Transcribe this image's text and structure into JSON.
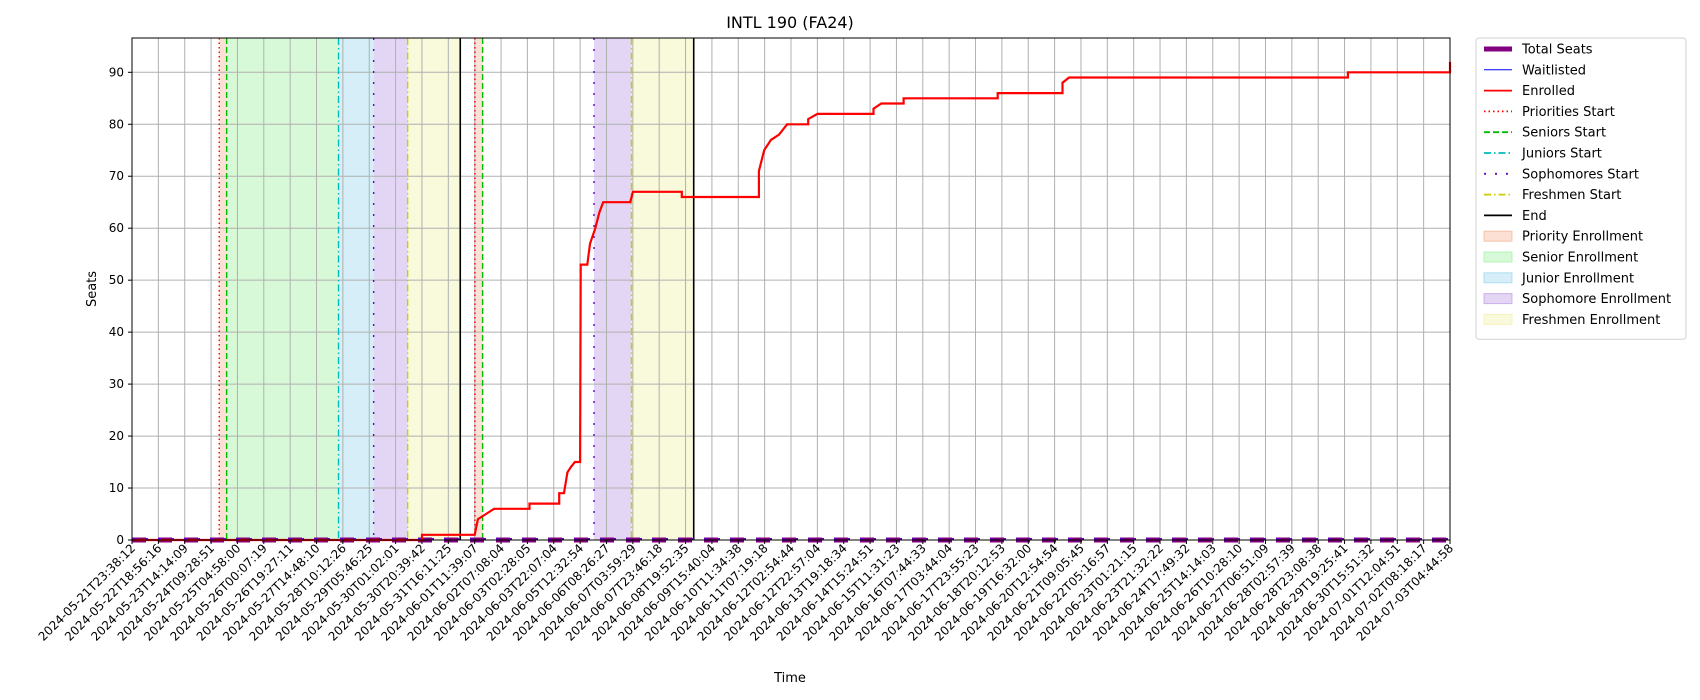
{
  "chart_data": {
    "type": "line",
    "title": "INTL 190 (FA24)",
    "xlabel": "Time",
    "ylabel": "Seats",
    "ylim": [
      0,
      96.6
    ],
    "yticks": [
      0,
      10,
      20,
      30,
      40,
      50,
      60,
      70,
      80,
      90
    ],
    "grid": true,
    "legend_position": "outside-right",
    "xtick_labels": [
      "2024-05-21T23:38:12",
      "2024-05-22T18:56:16",
      "2024-05-23T14:14:09",
      "2024-05-24T09:28:51",
      "2024-05-25T04:58:00",
      "2024-05-26T00:07:19",
      "2024-05-26T19:27:11",
      "2024-05-27T14:48:10",
      "2024-05-28T10:12:26",
      "2024-05-29T05:46:25",
      "2024-05-30T01:02:01",
      "2024-05-30T20:39:42",
      "2024-05-31T16:11:25",
      "2024-06-01T11:39:07",
      "2024-06-02T07:08:04",
      "2024-06-03T02:28:05",
      "2024-06-03T22:07:04",
      "2024-06-05T12:32:54",
      "2024-06-06T08:26:27",
      "2024-06-07T03:59:29",
      "2024-06-07T23:46:18",
      "2024-06-08T19:52:35",
      "2024-06-09T15:40:04",
      "2024-06-10T11:34:38",
      "2024-06-11T07:19:18",
      "2024-06-12T02:54:44",
      "2024-06-12T22:57:04",
      "2024-06-13T19:18:34",
      "2024-06-14T15:24:51",
      "2024-06-15T11:31:23",
      "2024-06-16T07:44:33",
      "2024-06-17T03:44:04",
      "2024-06-17T23:55:23",
      "2024-06-18T20:12:53",
      "2024-06-19T16:32:00",
      "2024-06-20T12:54:54",
      "2024-06-21T09:05:45",
      "2024-06-22T05:16:57",
      "2024-06-23T01:21:15",
      "2024-06-23T21:32:22",
      "2024-06-24T17:49:32",
      "2024-06-25T14:14:03",
      "2024-06-26T10:28:10",
      "2024-06-27T06:51:09",
      "2024-06-28T02:57:39",
      "2024-06-28T23:08:38",
      "2024-06-29T19:25:41",
      "2024-06-30T15:51:32",
      "2024-07-01T12:04:51",
      "2024-07-02T08:18:17",
      "2024-07-03T04:44:58"
    ],
    "series": [
      {
        "name": "Total Seats",
        "color": "#800080",
        "style": "solid-thick",
        "points": [
          [
            "2024-05-21T23:38:12",
            0
          ],
          [
            "2024-07-03T04:44:58",
            0
          ]
        ]
      },
      {
        "name": "Waitlisted",
        "color": "#0000ff",
        "style": "solid-thin",
        "points": [
          [
            "2024-05-21T23:38:12",
            0
          ],
          [
            "2024-07-03T04:44:58",
            0
          ]
        ]
      },
      {
        "name": "Enrolled",
        "color": "#ff0000",
        "style": "solid",
        "points": [
          [
            "2024-05-21T23:38:12",
            0
          ],
          [
            "2024-05-30T20:39:42",
            0
          ],
          [
            "2024-05-30T20:39:42",
            1
          ],
          [
            "2024-06-01T11:39:07",
            1
          ],
          [
            "2024-06-01T14:00:00",
            4
          ],
          [
            "2024-06-01T20:00:00",
            5
          ],
          [
            "2024-06-02T02:00:00",
            6
          ],
          [
            "2024-06-03T04:00:00",
            6
          ],
          [
            "2024-06-03T04:00:00",
            7
          ],
          [
            "2024-06-04T06:00:00",
            7
          ],
          [
            "2024-06-04T06:00:00",
            9
          ],
          [
            "2024-06-04T13:00:00",
            9
          ],
          [
            "2024-06-04T18:00:00",
            13
          ],
          [
            "2024-06-04T23:00:00",
            14
          ],
          [
            "2024-06-05T05:00:00",
            15
          ],
          [
            "2024-06-05T12:32:54",
            15
          ],
          [
            "2024-06-05T13:00:00",
            53
          ],
          [
            "2024-06-05T18:00:00",
            53
          ],
          [
            "2024-06-05T20:00:00",
            57
          ],
          [
            "2024-06-06T00:00:00",
            60
          ],
          [
            "2024-06-06T03:00:00",
            63
          ],
          [
            "2024-06-06T06:00:00",
            65
          ],
          [
            "2024-06-07T02:00:00",
            65
          ],
          [
            "2024-06-07T04:00:00",
            67
          ],
          [
            "2024-06-08T17:00:00",
            67
          ],
          [
            "2024-06-08T17:00:00",
            66
          ],
          [
            "2024-06-11T03:00:00",
            66
          ],
          [
            "2024-06-11T03:00:00",
            71
          ],
          [
            "2024-06-11T07:00:00",
            75
          ],
          [
            "2024-06-11T12:00:00",
            77
          ],
          [
            "2024-06-11T18:00:00",
            78
          ],
          [
            "2024-06-12T00:00:00",
            80
          ],
          [
            "2024-06-12T16:00:00",
            80
          ],
          [
            "2024-06-12T16:00:00",
            81
          ],
          [
            "2024-06-12T23:00:00",
            82
          ],
          [
            "2024-06-14T18:00:00",
            82
          ],
          [
            "2024-06-14T18:00:00",
            83
          ],
          [
            "2024-06-15T00:00:00",
            84
          ],
          [
            "2024-06-15T17:00:00",
            84
          ],
          [
            "2024-06-15T17:00:00",
            85
          ],
          [
            "2024-06-18T17:00:00",
            85
          ],
          [
            "2024-06-18T17:00:00",
            86
          ],
          [
            "2024-06-20T19:00:00",
            86
          ],
          [
            "2024-06-20T19:00:00",
            88
          ],
          [
            "2024-06-21T00:00:00",
            89
          ],
          [
            "2024-06-29T22:00:00",
            89
          ],
          [
            "2024-06-29T22:00:00",
            90
          ],
          [
            "2024-07-05T20:00:00",
            90
          ],
          [
            "2024-07-05T20:00:00",
            91
          ],
          [
            "2024-07-06T12:00:00",
            91
          ],
          [
            "2024-07-06T12:00:00",
            92
          ],
          [
            "2024-07-08T18:00:00",
            92
          ]
        ]
      }
    ],
    "vertical_lines": [
      {
        "name": "Priorities Start",
        "color": "#ff0000",
        "dash": "dotted",
        "x": [
          "2024-05-24T15:30:00",
          "2024-06-01T11:50:00"
        ]
      },
      {
        "name": "Seniors Start",
        "color": "#00bb00",
        "dash": "dashed",
        "x": [
          "2024-05-24T21:00:00",
          "2024-06-01T17:30:00"
        ]
      },
      {
        "name": "Juniors Start",
        "color": "#00bbbb",
        "dash": "dashdot",
        "x": [
          "2024-05-28T07:00:00"
        ]
      },
      {
        "name": "Sophomores Start",
        "color": "#6600cc",
        "dash": "loose",
        "x": [
          "2024-05-29T09:00:00",
          "2024-06-05T23:00:00"
        ]
      },
      {
        "name": "Freshmen Start",
        "color": "#cccc00",
        "dash": "dashdot",
        "x": [
          "2024-05-30T10:00:00",
          "2024-06-07T03:00:00"
        ]
      },
      {
        "name": "End",
        "color": "#000000",
        "dash": "solid",
        "x": [
          "2024-06-01T01:00:00",
          "2024-06-09T02:00:00"
        ]
      }
    ],
    "spans": [
      {
        "name": "Priority Enrollment",
        "color": "#f4a582",
        "ranges": [
          [
            "2024-05-24T15:30:00",
            "2024-05-24T21:00:00"
          ],
          [
            "2024-06-01T11:50:00",
            "2024-06-01T17:30:00"
          ]
        ]
      },
      {
        "name": "Senior Enrollment",
        "color": "#90ee90",
        "ranges": [
          [
            "2024-05-24T21:00:00",
            "2024-05-28T07:00:00"
          ]
        ]
      },
      {
        "name": "Junior Enrollment",
        "color": "#87ceeb",
        "ranges": [
          [
            "2024-05-28T07:00:00",
            "2024-05-29T09:00:00"
          ]
        ]
      },
      {
        "name": "Sophomore Enrollment",
        "color": "#b08ae0",
        "ranges": [
          [
            "2024-05-29T09:00:00",
            "2024-05-30T10:00:00"
          ],
          [
            "2024-06-05T23:00:00",
            "2024-06-07T03:00:00"
          ]
        ]
      },
      {
        "name": "Freshmen Enrollment",
        "color": "#eeee99",
        "ranges": [
          [
            "2024-05-30T10:00:00",
            "2024-06-01T01:00:00"
          ],
          [
            "2024-06-07T03:00:00",
            "2024-06-09T02:00:00"
          ]
        ]
      }
    ],
    "legend": [
      {
        "label": "Total Seats",
        "kind": "line",
        "color": "#800080",
        "style": "solid-thick"
      },
      {
        "label": "Waitlisted",
        "kind": "line",
        "color": "#0000ff",
        "style": "solid-thin"
      },
      {
        "label": "Enrolled",
        "kind": "line",
        "color": "#ff0000",
        "style": "solid"
      },
      {
        "label": "Priorities Start",
        "kind": "line",
        "color": "#ff0000",
        "style": "dotted"
      },
      {
        "label": "Seniors Start",
        "kind": "line",
        "color": "#00bb00",
        "style": "dashed"
      },
      {
        "label": "Juniors Start",
        "kind": "line",
        "color": "#00bbbb",
        "style": "dashdot"
      },
      {
        "label": "Sophomores Start",
        "kind": "line",
        "color": "#6600cc",
        "style": "loose"
      },
      {
        "label": "Freshmen Start",
        "kind": "line",
        "color": "#cccc00",
        "style": "dashdot"
      },
      {
        "label": "End",
        "kind": "line",
        "color": "#000000",
        "style": "solid"
      },
      {
        "label": "Priority Enrollment",
        "kind": "patch",
        "color": "#f4a582"
      },
      {
        "label": "Senior Enrollment",
        "kind": "patch",
        "color": "#90ee90"
      },
      {
        "label": "Junior Enrollment",
        "kind": "patch",
        "color": "#87ceeb"
      },
      {
        "label": "Sophomore Enrollment",
        "kind": "patch",
        "color": "#b08ae0"
      },
      {
        "label": "Freshmen Enrollment",
        "kind": "patch",
        "color": "#eeee99"
      }
    ]
  }
}
